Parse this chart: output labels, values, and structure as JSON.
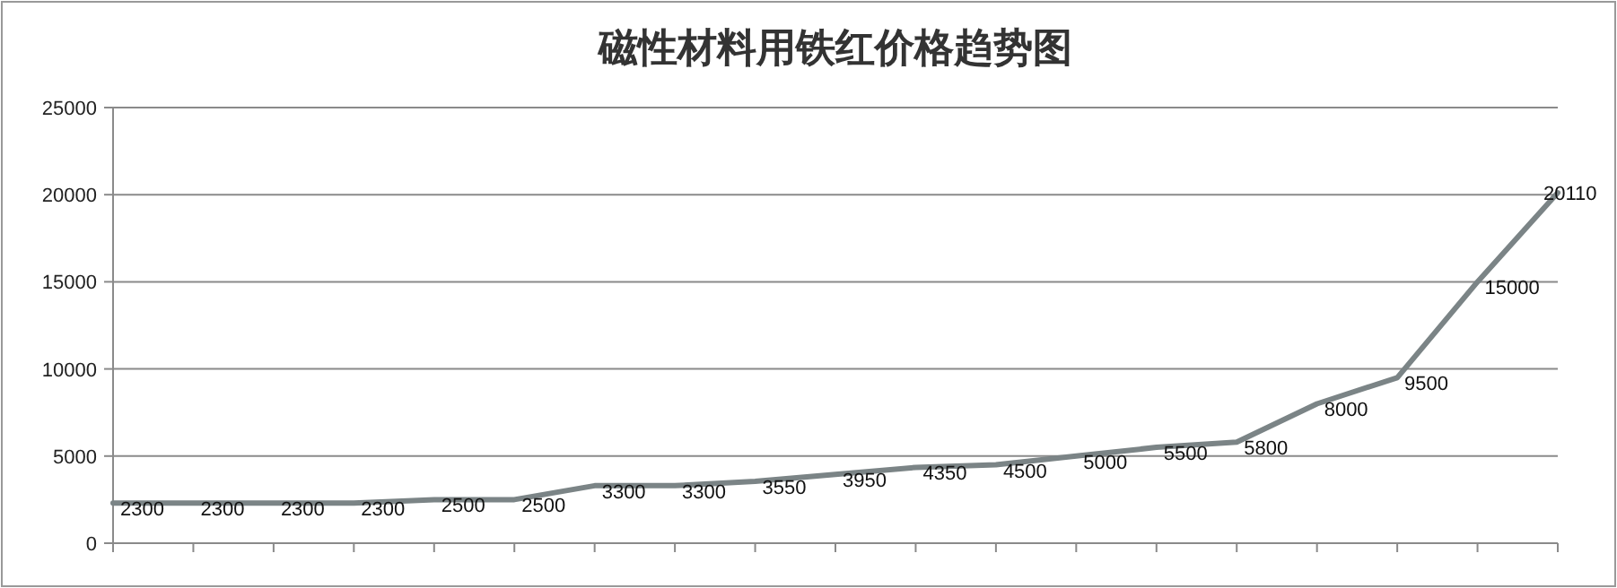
{
  "chart_data": {
    "type": "line",
    "title": "磁性材料用铁红价格趋势图",
    "categories": [
      null,
      null,
      null,
      null,
      null,
      null,
      null,
      null,
      null,
      null,
      null,
      null,
      null,
      null,
      null,
      null,
      null,
      null,
      null
    ],
    "series": [
      {
        "color": "#7b8486",
        "values": [
          2300,
          2300,
          2300,
          2300,
          2500,
          2500,
          3300,
          3300,
          3550,
          3950,
          4350,
          4500,
          5000,
          5500,
          5800,
          8000,
          9500,
          15000,
          20110
        ]
      }
    ],
    "ylim": [
      0,
      25000
    ],
    "yticks": [
      0,
      5000,
      10000,
      15000,
      20000,
      25000
    ],
    "grid": "y",
    "data_labels": true,
    "tick_labels": "y",
    "marker": "none",
    "line_style": "solid"
  }
}
